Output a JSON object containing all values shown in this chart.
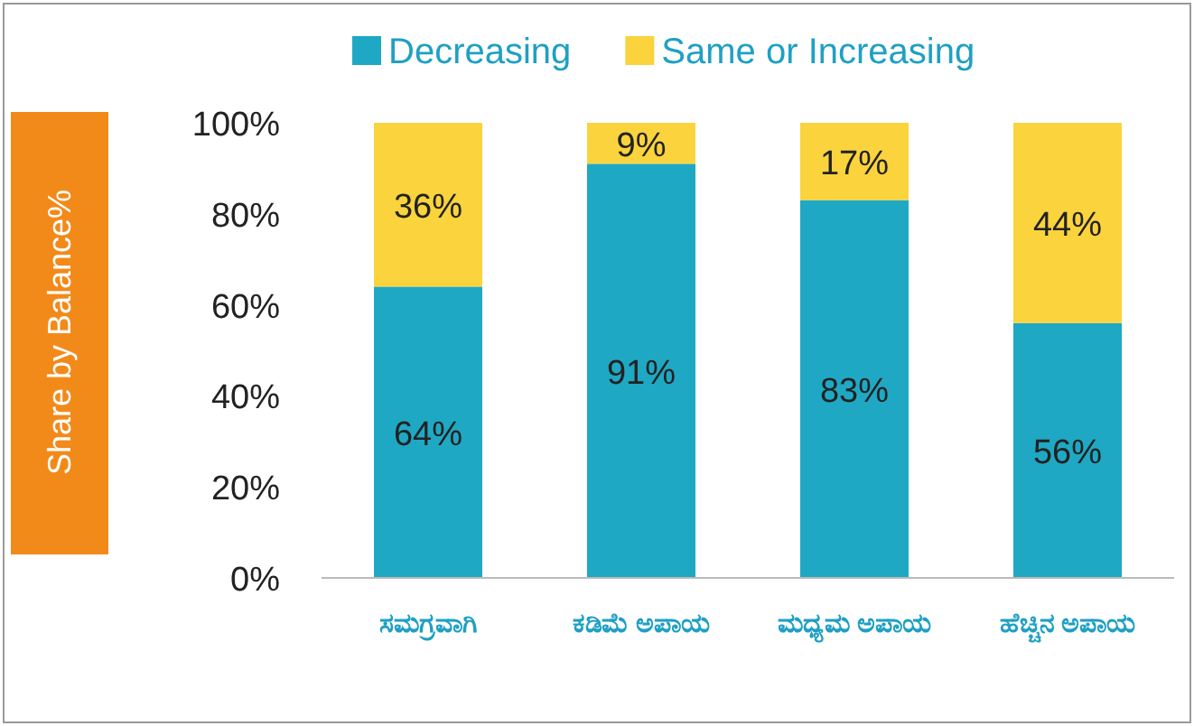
{
  "chart_data": {
    "type": "bar",
    "stacked": true,
    "ylabel": "Share by Balance%",
    "legend": "top",
    "categories": [
      "ಸಮಗ್ರವಾಗಿ",
      "ಕಡಿಮೆ ಅಪಾಯ",
      "ಮಧ್ಯಮ ಅಪಾಯ",
      "ಹೆಚ್ಚಿನ ಅಪಾಯ"
    ],
    "series": [
      {
        "name": "Decreasing",
        "color": "#1fa8c4",
        "values": [
          64,
          91,
          83,
          56
        ],
        "value_labels": [
          "64%",
          "91%",
          "83%",
          "56%"
        ]
      },
      {
        "name": "Same or Increasing",
        "color": "#fad33d",
        "values": [
          36,
          9,
          17,
          44
        ],
        "value_labels": [
          "36%",
          "9%",
          "17%",
          "44%"
        ]
      }
    ],
    "ylim": [
      0,
      100
    ],
    "yticks": [
      {
        "value": 0,
        "label": "0%"
      },
      {
        "value": 20,
        "label": "20%"
      },
      {
        "value": 40,
        "label": "40%"
      },
      {
        "value": 60,
        "label": "60%"
      },
      {
        "value": 80,
        "label": "80%"
      },
      {
        "value": 100,
        "label": "100%"
      }
    ]
  }
}
